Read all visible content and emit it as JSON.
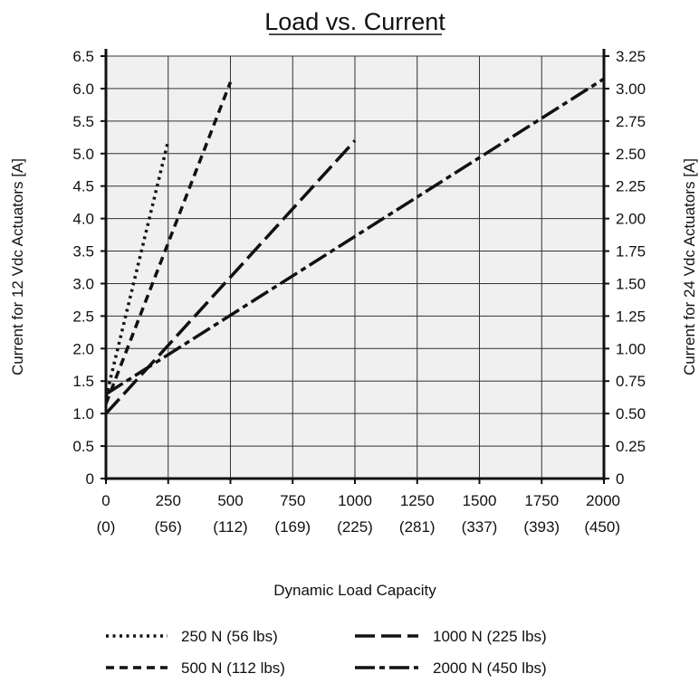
{
  "chart_data": {
    "type": "line",
    "title": "Load vs. Current",
    "xlabel": "Dynamic Load Capacity",
    "ylabel_left": "Current for 12 Vdc Actuators  [A]",
    "ylabel_right": "Current for 24 Vdc Actuators  [A]",
    "xlim": [
      0,
      2000
    ],
    "ylim_left": [
      0,
      6.5
    ],
    "ylim_right": [
      0,
      3.25
    ],
    "grid": true,
    "x_ticks": [
      0,
      250,
      500,
      750,
      1000,
      1250,
      1500,
      1750,
      2000
    ],
    "x_tick_labels": [
      "0",
      "250",
      "500",
      "750",
      "1000",
      "1250",
      "1500",
      "1750",
      "2000"
    ],
    "x_tick_sublabels": [
      "(0)",
      "(56)",
      "(112)",
      "(169)",
      "(225)",
      "(281)",
      "(337)",
      "(393)",
      "(450)"
    ],
    "y_left_ticks": [
      0,
      0.5,
      1.0,
      1.5,
      2.0,
      2.5,
      3.0,
      3.5,
      4.0,
      4.5,
      5.0,
      5.5,
      6.0,
      6.5
    ],
    "y_left_tick_labels": [
      "0",
      "0.5",
      "1.0",
      "1.5",
      "2.0",
      "2.5",
      "3.0",
      "3.5",
      "4.0",
      "4.5",
      "5.0",
      "5.5",
      "6.0",
      "6.5"
    ],
    "y_right_ticks": [
      0,
      0.25,
      0.5,
      0.75,
      1.0,
      1.25,
      1.5,
      1.75,
      2.0,
      2.25,
      2.5,
      2.75,
      3.0,
      3.25
    ],
    "y_right_tick_labels": [
      "0",
      "0.25",
      "0.50",
      "0.75",
      "1.00",
      "1.25",
      "1.50",
      "1.75",
      "2.00",
      "2.25",
      "2.50",
      "2.75",
      "3.00",
      "3.25"
    ],
    "legend_position": "bottom",
    "series": [
      {
        "name": "250 N (56 lbs)",
        "dash": "dotted",
        "x": [
          0,
          250
        ],
        "y": [
          1.25,
          5.2
        ]
      },
      {
        "name": "500 N (112 lbs)",
        "dash": "dashed",
        "x": [
          0,
          500
        ],
        "y": [
          1.15,
          6.1
        ]
      },
      {
        "name": "1000 N (225 lbs)",
        "dash": "long-dashed",
        "x": [
          0,
          1000
        ],
        "y": [
          1.0,
          5.2
        ]
      },
      {
        "name": "2000 N (450 lbs)",
        "dash": "dash-dot",
        "x": [
          0,
          2000
        ],
        "y": [
          1.3,
          6.15
        ]
      }
    ],
    "colors": {
      "plot_background": "#f0f0f0",
      "line": "#111111",
      "grid": "#333333"
    }
  }
}
